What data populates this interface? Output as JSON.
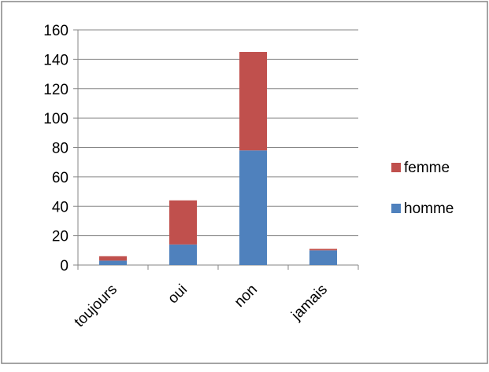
{
  "chart_data": {
    "type": "bar",
    "stacked": true,
    "categories": [
      "toujours",
      "oui",
      "non",
      "jamais"
    ],
    "series": [
      {
        "name": "homme",
        "values": [
          3,
          14,
          78,
          10
        ],
        "color": "#4F81BD"
      },
      {
        "name": "femme",
        "values": [
          3,
          30,
          67,
          1
        ],
        "color": "#C0504D"
      }
    ],
    "ylim": [
      0,
      160
    ],
    "yticks": [
      "0",
      "20",
      "40",
      "60",
      "80",
      "100",
      "120",
      "140",
      "160"
    ],
    "grid": true,
    "legend_position": "right",
    "legend_order": [
      "femme",
      "homme"
    ],
    "title": "",
    "xlabel": "",
    "ylabel": ""
  }
}
